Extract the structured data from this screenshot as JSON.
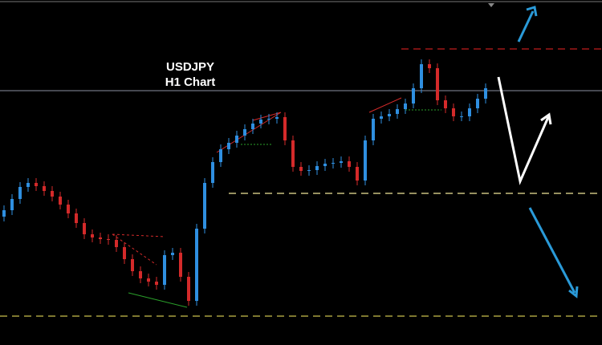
{
  "chart_data": {
    "type": "candlestick",
    "title": "USDJPY",
    "subtitle": "H1 Chart",
    "up_color": "#2f8fe0",
    "down_color": "#d42a2a",
    "ylim": [
      0,
      430
    ],
    "open": [
      160,
      168,
      182,
      197,
      202,
      198,
      192,
      185,
      175,
      164,
      152,
      138,
      134,
      132,
      131,
      122,
      107,
      92,
      83,
      79,
      75,
      112,
      115,
      85,
      55,
      145,
      202,
      228,
      244,
      252,
      261,
      269,
      276,
      281,
      282,
      284,
      255,
      222,
      217,
      218,
      223,
      226,
      227,
      229,
      222,
      205,
      255,
      282,
      285,
      288,
      294,
      301,
      320,
      350,
      345,
      305,
      295,
      285,
      285,
      295,
      307
    ],
    "high": [
      174,
      188,
      203,
      208,
      208,
      204,
      198,
      191,
      181,
      170,
      158,
      144,
      140,
      138,
      137,
      128,
      113,
      98,
      89,
      85,
      118,
      121,
      121,
      91,
      151,
      208,
      234,
      250,
      258,
      267,
      275,
      282,
      287,
      288,
      290,
      290,
      261,
      228,
      224,
      229,
      232,
      233,
      235,
      235,
      228,
      261,
      288,
      291,
      294,
      300,
      307,
      326,
      356,
      356,
      351,
      311,
      301,
      291,
      301,
      313,
      326
    ],
    "low": [
      154,
      162,
      176,
      191,
      192,
      186,
      179,
      169,
      158,
      146,
      132,
      128,
      126,
      125,
      116,
      101,
      86,
      77,
      73,
      69,
      69,
      106,
      79,
      49,
      49,
      139,
      196,
      222,
      238,
      246,
      255,
      263,
      270,
      275,
      276,
      249,
      216,
      211,
      211,
      212,
      217,
      220,
      221,
      216,
      199,
      199,
      249,
      276,
      279,
      282,
      288,
      295,
      314,
      339,
      299,
      289,
      279,
      279,
      279,
      289,
      301
    ],
    "close": [
      168,
      182,
      197,
      202,
      198,
      192,
      185,
      175,
      164,
      152,
      138,
      134,
      132,
      131,
      122,
      107,
      92,
      83,
      79,
      75,
      112,
      115,
      85,
      55,
      145,
      202,
      228,
      244,
      252,
      261,
      269,
      276,
      281,
      282,
      284,
      255,
      222,
      217,
      218,
      223,
      226,
      227,
      229,
      222,
      205,
      255,
      282,
      285,
      288,
      294,
      301,
      320,
      350,
      345,
      305,
      295,
      285,
      285,
      295,
      307,
      320
    ]
  }
}
